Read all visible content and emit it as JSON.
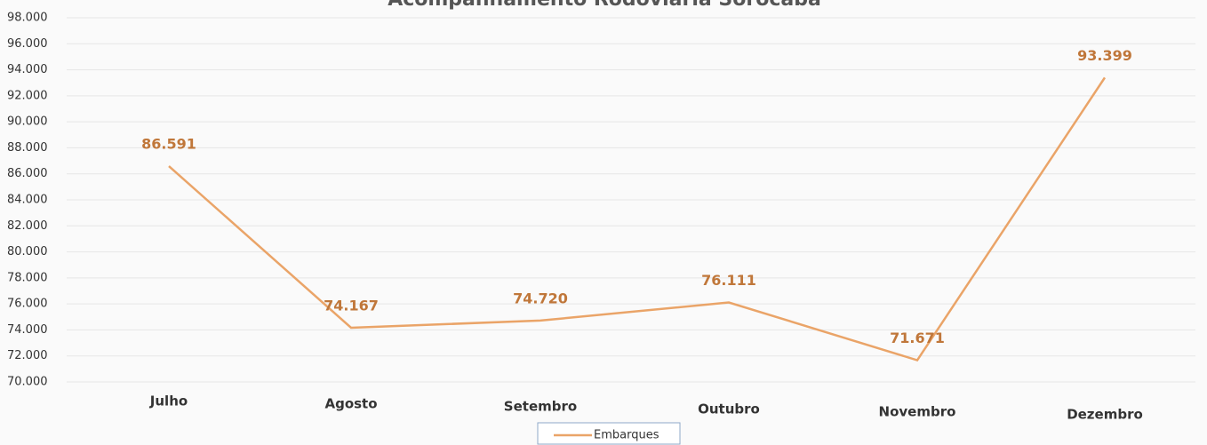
{
  "chart_data": {
    "type": "line",
    "title": "Acompanhamento Rodoviária Sorocaba",
    "categories": [
      "Julho",
      "Agosto",
      "Setembro",
      "Outubro",
      "Novembro",
      "Dezembro"
    ],
    "series": [
      {
        "name": "Embarques",
        "color": "#eaa468",
        "values": [
          86591,
          74167,
          74720,
          76111,
          71671,
          93399
        ],
        "value_labels": [
          "86.591",
          "74.167",
          "74.720",
          "76.111",
          "71.671",
          "93.399"
        ]
      }
    ],
    "ylim": [
      70000,
      98000
    ],
    "yticks": [
      {
        "value": 70000,
        "label": "70.000"
      },
      {
        "value": 72000,
        "label": "72.000"
      },
      {
        "value": 74000,
        "label": "74.000"
      },
      {
        "value": 76000,
        "label": "76.000"
      },
      {
        "value": 78000,
        "label": "78.000"
      },
      {
        "value": 80000,
        "label": "80.000"
      },
      {
        "value": 82000,
        "label": "82.000"
      },
      {
        "value": 84000,
        "label": "84.000"
      },
      {
        "value": 86000,
        "label": "86.000"
      },
      {
        "value": 88000,
        "label": "88.000"
      },
      {
        "value": 90000,
        "label": "90.000"
      },
      {
        "value": 92000,
        "label": "92.000"
      },
      {
        "value": 94000,
        "label": "94.000"
      },
      {
        "value": 96000,
        "label": "96.000"
      },
      {
        "value": 98000,
        "label": "98.000"
      }
    ],
    "grid": true,
    "legend": "bottom"
  }
}
